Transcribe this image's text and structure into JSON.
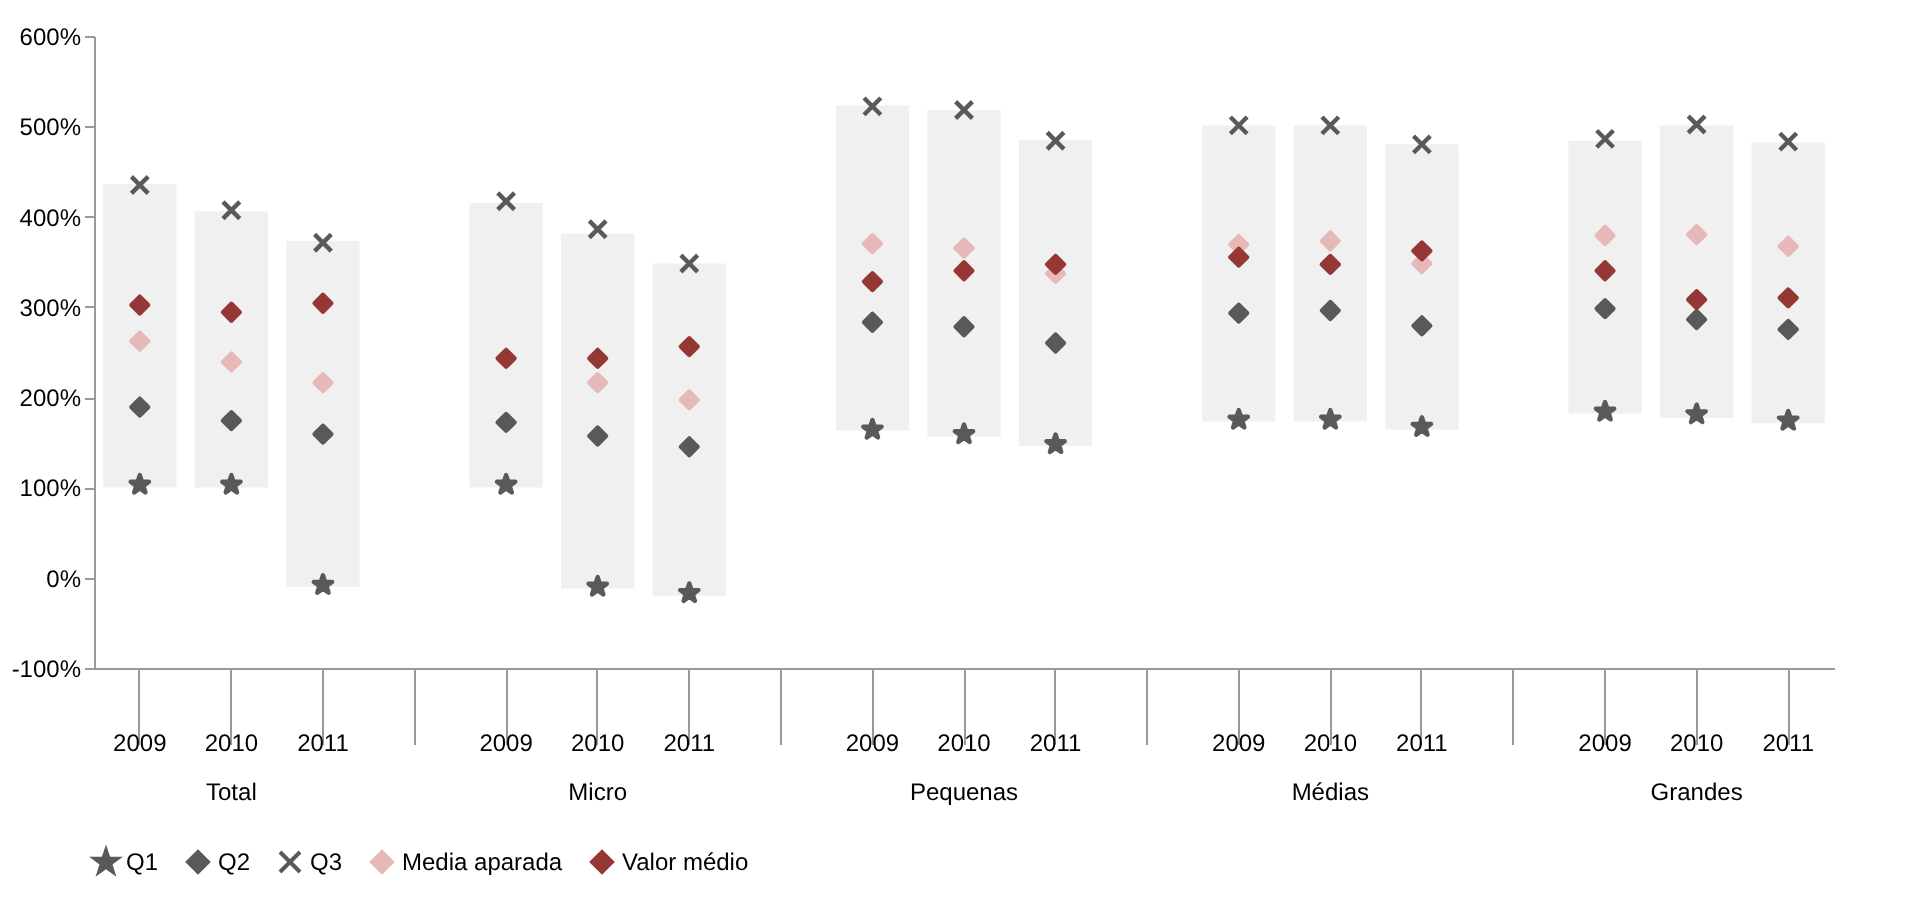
{
  "chart_data": {
    "type": "scatter",
    "categories": [
      "2009",
      "2010",
      "2011",
      null,
      "2009",
      "2010",
      "2011",
      null,
      "2009",
      "2010",
      "2011",
      null,
      "2009",
      "2010",
      "2011",
      null,
      "2009",
      "2010",
      "2011"
    ],
    "annotations": [
      "Total",
      "Micro",
      "Pequenas",
      "Médias",
      "Grandes"
    ],
    "ylim": [
      -100,
      600
    ],
    "yticks": [
      {
        "value": -100,
        "label": "-100%"
      },
      {
        "value": 0,
        "label": "0%"
      },
      {
        "value": 100,
        "label": "100%"
      },
      {
        "value": 200,
        "label": "200%"
      },
      {
        "value": 300,
        "label": "300%"
      },
      {
        "value": 400,
        "label": "400%"
      },
      {
        "value": 500,
        "label": "500%"
      },
      {
        "value": 600,
        "label": "600%"
      }
    ],
    "grid": false,
    "legend": "bottom",
    "series": [
      {
        "type": "bar",
        "color": "#f0f0f0",
        "base": [
          100,
          100,
          -10,
          null,
          100,
          -12,
          -20,
          null,
          163,
          156,
          146,
          null,
          173,
          173,
          164,
          null,
          182,
          177,
          171
        ],
        "values": [
          336,
          306,
          383,
          null,
          315,
          393,
          368,
          null,
          360,
          362,
          339,
          null,
          328,
          328,
          316,
          null,
          302,
          324,
          311
        ]
      },
      {
        "name": "Q1",
        "marker": "star",
        "color": "#595959",
        "values": [
          103,
          103,
          -8,
          null,
          103,
          -10,
          -17,
          null,
          164,
          159,
          148,
          null,
          175,
          175,
          167,
          null,
          184,
          181,
          174
        ]
      },
      {
        "name": "Q2",
        "marker": "diamond",
        "color": "#595959",
        "values": [
          189,
          174,
          159,
          null,
          172,
          157,
          145,
          null,
          283,
          278,
          260,
          null,
          293,
          296,
          279,
          null,
          298,
          286,
          275
        ]
      },
      {
        "name": "Q3",
        "marker": "cross",
        "color": "#595959",
        "values": [
          435,
          407,
          371,
          null,
          417,
          386,
          348,
          null,
          522,
          518,
          484,
          null,
          501,
          501,
          480,
          null,
          486,
          502,
          483
        ]
      },
      {
        "name": "Media aparada",
        "marker": "diamond",
        "color": "#e6b9b8",
        "values": [
          262,
          239,
          216,
          null,
          null,
          216,
          197,
          null,
          370,
          365,
          337,
          null,
          369,
          373,
          348,
          null,
          379,
          380,
          367
        ]
      },
      {
        "name": "Valor médio",
        "marker": "diamond",
        "color": "#953735",
        "values": [
          302,
          294,
          304,
          null,
          243,
          243,
          256,
          null,
          328,
          340,
          347,
          null,
          355,
          347,
          362,
          null,
          340,
          308,
          310
        ]
      }
    ]
  }
}
